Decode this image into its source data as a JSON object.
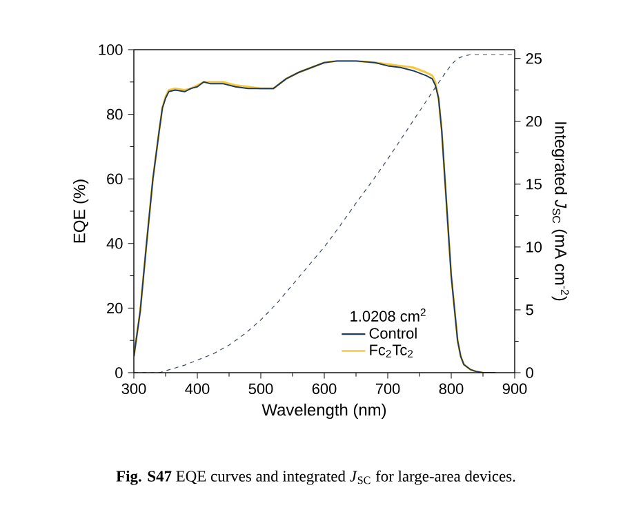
{
  "chart_data": {
    "type": "line",
    "xlabel": "Wavelength (nm)",
    "ylabel": "EQE (%)",
    "y2label": "Integrated *J*$_{SC}$ (mA cm$^{-2}$)",
    "legend_title": "1.0208 cm$^{2}$",
    "legend": "bottom",
    "xlim": [
      300,
      900
    ],
    "xticks": [
      300,
      400,
      500,
      600,
      700,
      800,
      900
    ],
    "ylim": [
      0,
      100
    ],
    "yticks": [
      0,
      20,
      40,
      60,
      80,
      100
    ],
    "y2lim": [
      0,
      25.7
    ],
    "y2ticks": [
      0,
      5,
      10,
      15,
      20,
      25
    ],
    "series": [
      {
        "name": "Control",
        "color": "#1f3a5a",
        "x": [
          300,
          305,
          310,
          320,
          330,
          340,
          345,
          350,
          355,
          365,
          380,
          390,
          400,
          410,
          420,
          440,
          460,
          480,
          500,
          520,
          540,
          560,
          580,
          600,
          620,
          650,
          680,
          700,
          720,
          740,
          760,
          770,
          775,
          780,
          785,
          790,
          795,
          800,
          805,
          810,
          815,
          820,
          830,
          840,
          850,
          870
        ],
        "values": [
          5,
          12,
          19,
          40,
          60,
          75,
          82,
          85,
          87,
          87.5,
          87,
          88,
          88.5,
          90,
          89.5,
          89.5,
          88.5,
          88,
          88,
          88,
          91,
          93,
          94.5,
          96,
          96.5,
          96.5,
          96,
          95,
          94.5,
          93.5,
          92,
          91,
          89,
          85,
          75,
          60,
          45,
          30,
          20,
          10,
          5,
          2.5,
          1,
          0.3,
          0,
          0
        ]
      },
      {
        "name": "Fc$_{2}$Tc$_{2}$",
        "color": "#f5c842",
        "x": [
          300,
          305,
          310,
          320,
          330,
          340,
          345,
          350,
          355,
          365,
          380,
          390,
          400,
          410,
          420,
          440,
          460,
          480,
          500,
          520,
          540,
          560,
          580,
          600,
          620,
          650,
          680,
          700,
          720,
          740,
          760,
          770,
          775,
          780,
          785,
          790,
          795,
          800,
          805,
          810,
          815,
          820,
          830,
          840,
          850
        ],
        "values": [
          5,
          12,
          19,
          40,
          60,
          75,
          82,
          85.5,
          87.5,
          88,
          87.5,
          88,
          89,
          90,
          90,
          90,
          89,
          88.5,
          88,
          88,
          91,
          93,
          94.5,
          96,
          96.5,
          96.5,
          96,
          95.5,
          95,
          94.5,
          93,
          92,
          90,
          85,
          75,
          60,
          45,
          30,
          20,
          10,
          5,
          2.5,
          1,
          0.3,
          0
        ]
      },
      {
        "color": "#3a4a5e",
        "axis": "y2",
        "line_style": "dashed",
        "x": [
          300,
          340,
          360,
          380,
          400,
          425,
          450,
          475,
          500,
          525,
          550,
          575,
          600,
          625,
          650,
          675,
          700,
          725,
          750,
          775,
          790,
          800,
          810,
          820,
          830,
          850,
          875,
          900
        ],
        "values": [
          0,
          0,
          0.3,
          0.6,
          1,
          1.5,
          2.2,
          3.1,
          4.2,
          5.5,
          7,
          8.5,
          10,
          11.7,
          13.5,
          15.2,
          17,
          18.9,
          20.8,
          22.7,
          23.8,
          24.5,
          25,
          25.2,
          25.3,
          25.3,
          25.3,
          25.3
        ]
      }
    ],
    "annotations": [
      "**Fig. S47** EQE curves and integrated *J*$_{SC}$ for large-area devices."
    ]
  }
}
